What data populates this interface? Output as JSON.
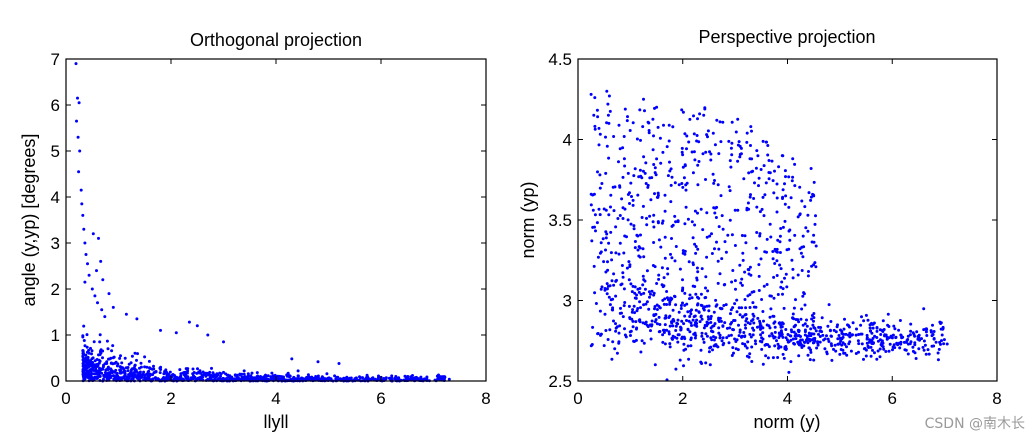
{
  "chart_data": [
    {
      "type": "scatter",
      "title": "Orthogonal projection",
      "xlabel": "llyll",
      "ylabel": "angle (y,yp) [degrees]",
      "xlim": [
        0,
        8
      ],
      "ylim": [
        0,
        7
      ],
      "xticks": [
        0,
        2,
        4,
        6,
        8
      ],
      "yticks": [
        0,
        1,
        2,
        3,
        4,
        5,
        6,
        7
      ],
      "grid": false,
      "marker_color": "#0000ff",
      "series": [
        {
          "points": [
            [
              0.19,
              6.9
            ],
            [
              0.22,
              6.15
            ],
            [
              0.25,
              6.05
            ],
            [
              0.2,
              5.65
            ],
            [
              0.23,
              5.3
            ],
            [
              0.26,
              5.0
            ],
            [
              0.24,
              4.55
            ],
            [
              0.29,
              4.15
            ],
            [
              0.3,
              3.85
            ],
            [
              0.32,
              3.6
            ],
            [
              0.34,
              3.3
            ],
            [
              0.36,
              3.0
            ],
            [
              0.38,
              2.75
            ],
            [
              0.41,
              2.55
            ],
            [
              0.44,
              2.3
            ],
            [
              0.36,
              2.15
            ],
            [
              0.5,
              2.0
            ],
            [
              0.55,
              1.85
            ],
            [
              0.6,
              1.7
            ],
            [
              0.68,
              1.55
            ],
            [
              0.74,
              1.4
            ],
            [
              0.52,
              3.2
            ],
            [
              0.62,
              3.1
            ],
            [
              0.66,
              2.6
            ],
            [
              0.58,
              2.4
            ],
            [
              0.7,
              2.2
            ],
            [
              0.82,
              1.9
            ],
            [
              0.9,
              1.6
            ],
            [
              1.15,
              1.45
            ],
            [
              1.35,
              1.35
            ],
            [
              2.35,
              1.28
            ],
            [
              2.5,
              1.2
            ],
            [
              1.8,
              1.1
            ],
            [
              2.1,
              1.05
            ],
            [
              2.7,
              1.0
            ],
            [
              3.0,
              0.85
            ],
            [
              4.3,
              0.48
            ],
            [
              4.8,
              0.42
            ],
            [
              5.2,
              0.38
            ],
            [
              6.6,
              0.12
            ],
            [
              7.3,
              0.04
            ]
          ],
          "cloud": {
            "x_range": [
              0.3,
              7.2
            ],
            "y_typical": [
              0.0,
              0.9
            ],
            "count": 1100
          }
        }
      ]
    },
    {
      "type": "scatter",
      "title": "Perspective projection",
      "xlabel": "norm (y)",
      "ylabel": "norm (yp)",
      "xlim": [
        0,
        8
      ],
      "ylim": [
        2.5,
        4.5
      ],
      "xticks": [
        0,
        2,
        4,
        6,
        8
      ],
      "yticks": [
        2.5,
        3,
        3.5,
        4,
        4.5
      ],
      "grid": false,
      "marker_color": "#0000ff",
      "series": [
        {
          "points": [
            [
              0.25,
              4.28
            ],
            [
              0.32,
              4.26
            ],
            [
              0.55,
              4.3
            ],
            [
              0.57,
              4.22
            ],
            [
              0.58,
              4.15
            ],
            [
              0.59,
              4.1
            ],
            [
              0.6,
              4.27
            ],
            [
              1.25,
              4.25
            ],
            [
              1.5,
              4.2
            ],
            [
              2.4,
              4.15
            ],
            [
              2.65,
              4.12
            ],
            [
              3.3,
              4.08
            ],
            [
              3.9,
              3.9
            ],
            [
              4.1,
              3.88
            ],
            [
              4.45,
              3.82
            ],
            [
              4.5,
              3.65
            ],
            [
              3.8,
              3.55
            ],
            [
              4.3,
              3.4
            ],
            [
              3.6,
              3.3
            ],
            [
              4.4,
              3.18
            ],
            [
              6.4,
              2.8
            ],
            [
              6.8,
              2.76
            ],
            [
              7.05,
              2.73
            ],
            [
              0.5,
              2.72
            ],
            [
              0.7,
              2.7
            ],
            [
              1.2,
              2.68
            ]
          ],
          "cloud": {
            "x_range": [
              0.2,
              7.1
            ],
            "y_typical": [
              2.7,
              4.25
            ],
            "count": 1400
          }
        }
      ]
    }
  ],
  "watermark": "CSDN @南木长"
}
